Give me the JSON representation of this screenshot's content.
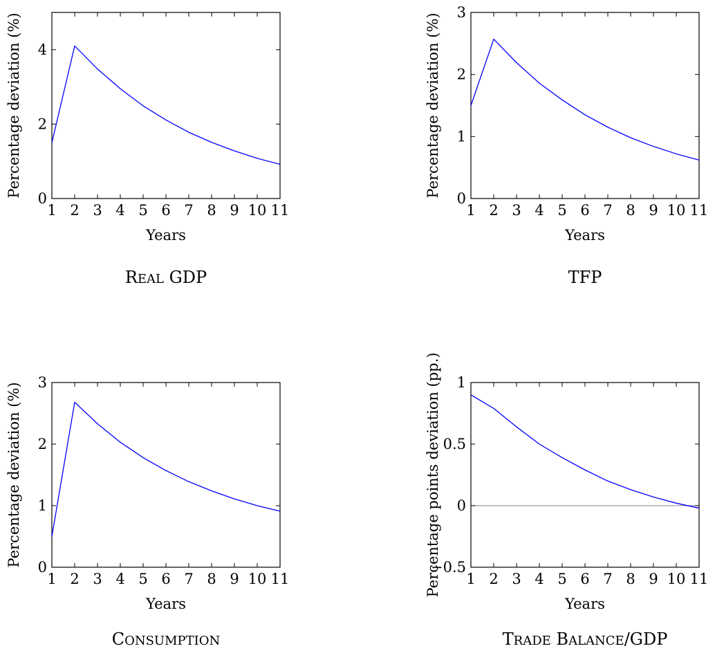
{
  "chart_data": [
    {
      "type": "line",
      "caption": "Real GDP",
      "xlabel": "Years",
      "ylabel": "Percentage deviation (%)",
      "x": [
        1,
        2,
        3,
        4,
        5,
        6,
        7,
        8,
        9,
        10,
        11
      ],
      "xlim": [
        1,
        11
      ],
      "ylim": [
        0,
        5
      ],
      "yticks": [
        0,
        2,
        4
      ],
      "series": [
        {
          "values": [
            1.5,
            4.1,
            3.48,
            2.95,
            2.49,
            2.11,
            1.78,
            1.51,
            1.28,
            1.08,
            0.92
          ],
          "color": "#0000ff"
        }
      ],
      "zero_line": false,
      "grid": false
    },
    {
      "type": "line",
      "caption": "TFP",
      "xlabel": "Years",
      "ylabel": "Percentage deviation (%)",
      "x": [
        1,
        2,
        3,
        4,
        5,
        6,
        7,
        8,
        9,
        10,
        11
      ],
      "xlim": [
        1,
        11
      ],
      "ylim": [
        0,
        3
      ],
      "yticks": [
        0,
        1,
        2,
        3
      ],
      "series": [
        {
          "values": [
            1.5,
            2.57,
            2.19,
            1.86,
            1.59,
            1.35,
            1.15,
            0.98,
            0.84,
            0.72,
            0.62
          ],
          "color": "#0000ff"
        }
      ],
      "zero_line": false,
      "grid": false
    },
    {
      "type": "line",
      "caption": "Consumption",
      "xlabel": "Years",
      "ylabel": "Percentage deviation (%)",
      "x": [
        1,
        2,
        3,
        4,
        5,
        6,
        7,
        8,
        9,
        10,
        11
      ],
      "xlim": [
        1,
        11
      ],
      "ylim": [
        0,
        3
      ],
      "yticks": [
        0,
        1,
        2,
        3
      ],
      "series": [
        {
          "values": [
            0.5,
            2.68,
            2.33,
            2.03,
            1.78,
            1.57,
            1.39,
            1.24,
            1.11,
            1.0,
            0.91
          ],
          "color": "#0000ff"
        }
      ],
      "zero_line": false,
      "grid": false
    },
    {
      "type": "line",
      "caption": "Trade Balance/GDP",
      "xlabel": "Years",
      "ylabel": "Percentage points deviation (pp.)",
      "x": [
        1,
        2,
        3,
        4,
        5,
        6,
        7,
        8,
        9,
        10,
        11
      ],
      "xlim": [
        1,
        11
      ],
      "ylim": [
        -0.5,
        1
      ],
      "yticks": [
        -0.5,
        0,
        0.5,
        1
      ],
      "ytick_labels": [
        "−0.5",
        "0",
        "0.5",
        "1"
      ],
      "series": [
        {
          "values": [
            0.9,
            0.79,
            0.64,
            0.5,
            0.39,
            0.29,
            0.2,
            0.13,
            0.07,
            0.02,
            -0.02
          ],
          "color": "#0000ff"
        }
      ],
      "zero_line": true,
      "grid": false
    }
  ]
}
